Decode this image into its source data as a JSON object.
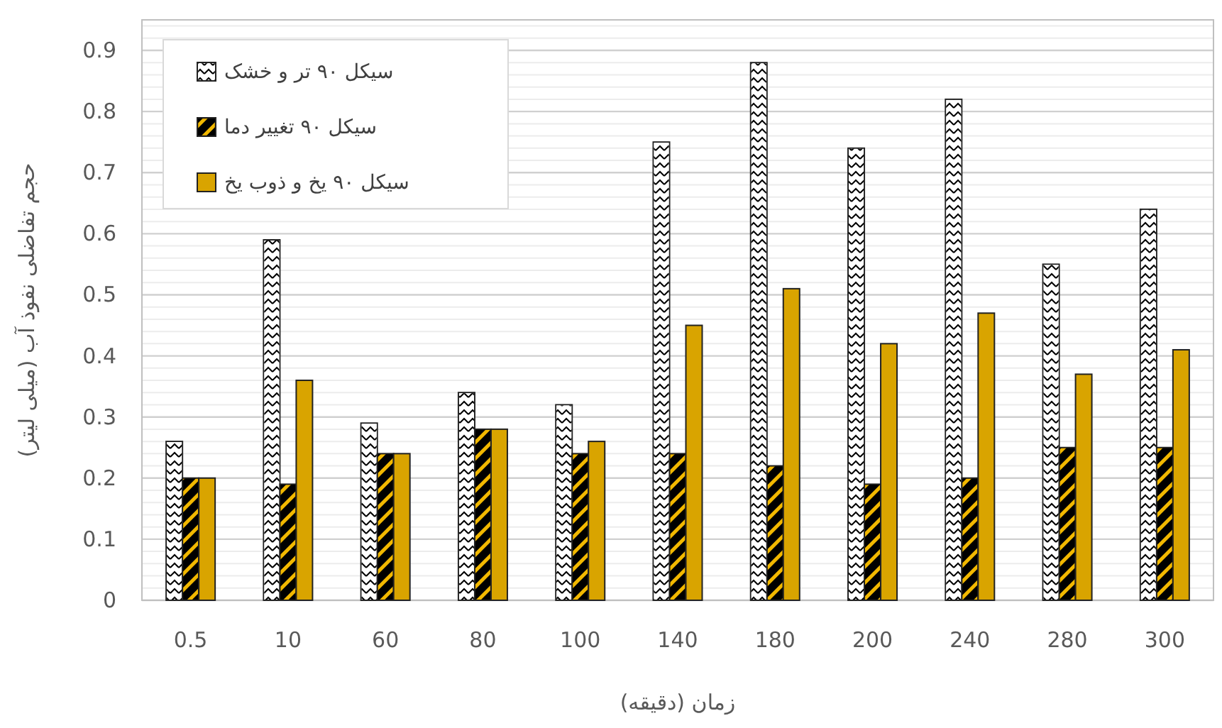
{
  "chart_data": {
    "type": "bar",
    "xlabel": "زمان (دقیقه)",
    "ylabel": "حجم تفاضلی نفوذ آب (میلی لیتر)",
    "categories": [
      "0.5",
      "10",
      "60",
      "80",
      "100",
      "140",
      "180",
      "200",
      "240",
      "280",
      "300"
    ],
    "series": [
      {
        "name": "سیکل ۹۰ تر و خشک",
        "color": "#ffffff",
        "values": [
          0.26,
          0.59,
          0.29,
          0.34,
          0.32,
          0.75,
          0.88,
          0.74,
          0.82,
          0.55,
          0.64
        ]
      },
      {
        "name": "سیکل ۹۰ تغییر دما",
        "color": "#000000",
        "values": [
          0.2,
          0.19,
          0.24,
          0.28,
          0.24,
          0.24,
          0.22,
          0.19,
          0.2,
          0.25,
          0.25
        ]
      },
      {
        "name": "سیکل ۹۰ یخ و ذوب یخ",
        "color": "#d9a400",
        "values": [
          0.2,
          0.36,
          0.24,
          0.28,
          0.26,
          0.45,
          0.51,
          0.42,
          0.47,
          0.37,
          0.41
        ]
      }
    ],
    "ylim": [
      0,
      0.95
    ],
    "yticks": [
      0,
      0.1,
      0.2,
      0.3,
      0.4,
      0.5,
      0.6,
      0.7,
      0.8,
      0.9
    ],
    "grid": "y",
    "legend": "top left"
  }
}
